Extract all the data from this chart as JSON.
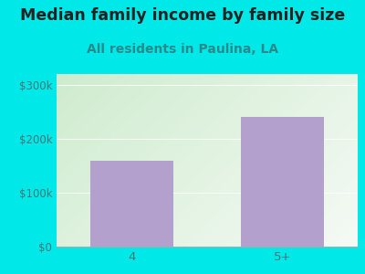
{
  "categories": [
    "4",
    "5+"
  ],
  "values": [
    160000,
    240000
  ],
  "bar_color": "#b3a0cc",
  "title": "Median family income by family size",
  "subtitle": "All residents in Paulina, LA",
  "title_fontsize": 12.5,
  "subtitle_fontsize": 10,
  "title_color": "#222222",
  "subtitle_color": "#2a8a8a",
  "background_color": "#00e8e8",
  "plot_bg_topleft": "#c8e8cc",
  "plot_bg_bottomright": "#f0f8f0",
  "ytick_labels": [
    "$0",
    "$100k",
    "$200k",
    "$300k"
  ],
  "ytick_values": [
    0,
    100000,
    200000,
    300000
  ],
  "ylim": [
    0,
    320000
  ],
  "tick_color": "#447777",
  "tick_fontsize": 8.5,
  "xlabel_fontsize": 9.5,
  "xlabel_color": "#447777"
}
